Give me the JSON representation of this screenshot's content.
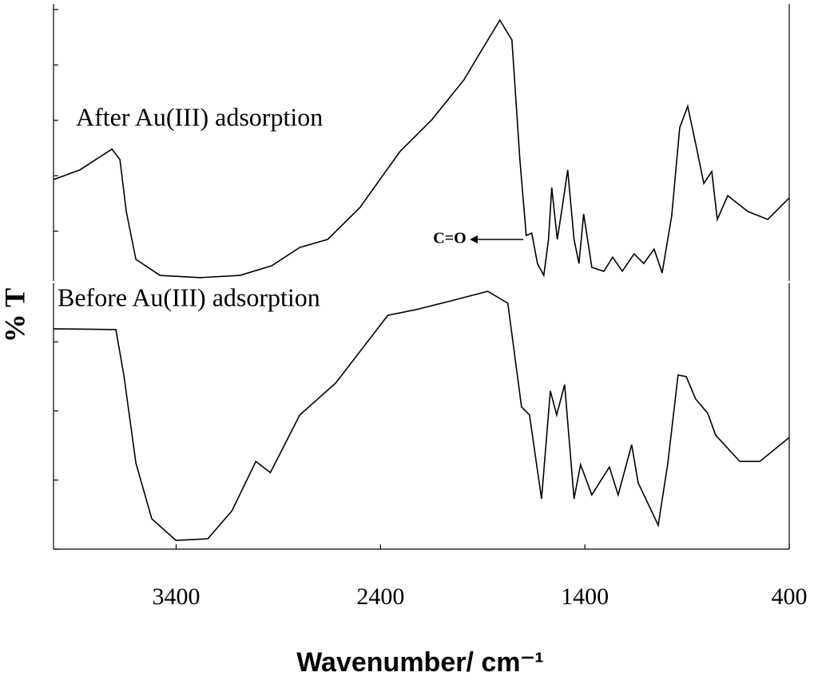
{
  "chart_data": [
    {
      "type": "line",
      "label": "After Au(III) adsorption",
      "ylabel": "% T",
      "annotation": "C=O",
      "xlim": [
        4000,
        400
      ],
      "ylim": [
        0,
        100
      ],
      "yticks": [
        18,
        38,
        58,
        78,
        98
      ],
      "x": [
        4000,
        3871,
        3714,
        3675,
        3644,
        3597,
        3479,
        3284,
        3088,
        2932,
        2795,
        2658,
        2501,
        2305,
        2149,
        1992,
        1875,
        1816,
        1757,
        1718,
        1687,
        1660,
        1632,
        1601,
        1578,
        1562,
        1535,
        1511,
        1484,
        1453,
        1429,
        1406,
        1366,
        1307,
        1264,
        1217,
        1159,
        1112,
        1061,
        1022,
        975,
        936,
        897,
        858,
        818,
        779,
        752,
        701,
        603,
        505,
        400
      ],
      "values": [
        36.6,
        40.1,
        47.6,
        43.8,
        25.1,
        7.8,
        2.0,
        1.2,
        2.0,
        5.5,
        12.1,
        15.0,
        26.5,
        46.7,
        58.2,
        72.6,
        87.0,
        94.2,
        87.0,
        43.8,
        16.4,
        17.3,
        6.3,
        2.0,
        15.0,
        33.7,
        15.0,
        26.5,
        40.1,
        15.0,
        6.3,
        24.2,
        4.9,
        3.5,
        8.6,
        3.5,
        9.8,
        6.3,
        11.5,
        2.9,
        23.6,
        55.3,
        63.1,
        49.6,
        35.2,
        39.5,
        22.2,
        30.8,
        25.1,
        22.2,
        30.0
      ],
      "color": "#000000"
    },
    {
      "type": "line",
      "label": "Before Au(III) adsorption",
      "xlabel": "Wavenumber/ cm⁻¹",
      "xlim": [
        4000,
        400
      ],
      "xticks": [
        3400,
        2400,
        1400,
        400
      ],
      "ylim": [
        0,
        100
      ],
      "yticks": [
        0,
        26,
        52,
        78
      ],
      "x": [
        4000,
        3695,
        3656,
        3597,
        3519,
        3401,
        3245,
        3127,
        3010,
        2939,
        2795,
        2619,
        2364,
        2227,
        2071,
        1875,
        1777,
        1710,
        1671,
        1612,
        1569,
        1538,
        1499,
        1453,
        1421,
        1366,
        1280,
        1237,
        1171,
        1139,
        1041,
        994,
        944,
        904,
        858,
        799,
        760,
        642,
        544,
        400
      ],
      "values": [
        82.9,
        82.6,
        65.5,
        32.4,
        11.4,
        3.3,
        3.9,
        14.4,
        33.0,
        28.8,
        50.5,
        62.5,
        88.0,
        90.1,
        93.1,
        97.0,
        92.5,
        53.5,
        50.5,
        18.9,
        59.5,
        50.5,
        61.9,
        18.9,
        31.8,
        20.4,
        30.9,
        20.4,
        39.3,
        24.9,
        9.0,
        32.4,
        65.5,
        64.9,
        56.5,
        51.1,
        42.9,
        33.0,
        33.0,
        42.0
      ],
      "color": "#000000"
    }
  ]
}
